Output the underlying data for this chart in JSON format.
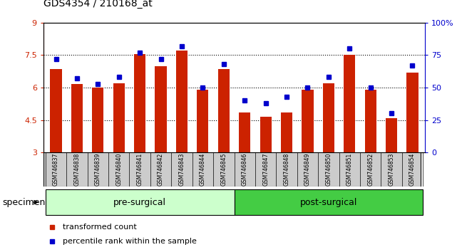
{
  "title": "GDS4354 / 210168_at",
  "samples": [
    "GSM746837",
    "GSM746838",
    "GSM746839",
    "GSM746840",
    "GSM746841",
    "GSM746842",
    "GSM746843",
    "GSM746844",
    "GSM746845",
    "GSM746846",
    "GSM746847",
    "GSM746848",
    "GSM746849",
    "GSM746850",
    "GSM746851",
    "GSM746852",
    "GSM746853",
    "GSM746854"
  ],
  "bar_values": [
    6.85,
    6.15,
    6.0,
    6.2,
    7.55,
    7.0,
    7.7,
    5.9,
    6.85,
    4.85,
    4.65,
    4.85,
    5.9,
    6.2,
    7.5,
    5.9,
    4.6,
    6.7
  ],
  "percentile_values": [
    72,
    57,
    53,
    58,
    77,
    72,
    82,
    50,
    68,
    40,
    38,
    43,
    50,
    58,
    80,
    50,
    30,
    67
  ],
  "ymin": 3.0,
  "ymax": 9.0,
  "yticks": [
    3.0,
    4.5,
    6.0,
    7.5,
    9.0
  ],
  "ytick_labels": [
    "3",
    "4.5",
    "6",
    "7.5",
    "9"
  ],
  "y2min": 0,
  "y2max": 100,
  "y2ticks": [
    0,
    25,
    50,
    75,
    100
  ],
  "y2tick_labels": [
    "0",
    "25",
    "50",
    "75",
    "100%"
  ],
  "dotted_lines": [
    4.5,
    6.0,
    7.5
  ],
  "bar_color": "#cc2200",
  "percentile_color": "#0000cc",
  "pre_surgical_count": 9,
  "post_surgical_count": 9,
  "pre_surgical_label": "pre-surgical",
  "post_surgical_label": "post-surgical",
  "pre_surgical_color": "#ccffcc",
  "post_surgical_color": "#44cc44",
  "legend_label_1": "transformed count",
  "legend_label_2": "percentile rank within the sample",
  "specimen_label": "specimen",
  "tick_area_color": "#cccccc",
  "title_fontsize": 10,
  "bar_fontsize": 5.5,
  "group_fontsize": 9,
  "legend_fontsize": 8,
  "specimen_fontsize": 9
}
